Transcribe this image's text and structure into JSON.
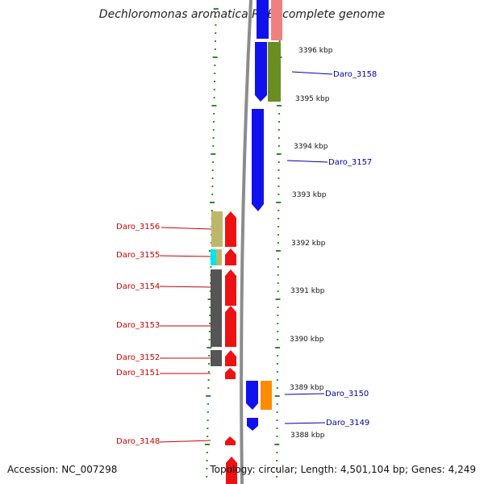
{
  "title": "Dechloromonas aromatica RCB, complete genome",
  "accession": "Accession: NC_007298",
  "topology": "Topology: circular; Length: 4,501,104 bp; Genes: 4,249",
  "colors": {
    "backbone": "#8c8c8c",
    "dots": "#2e8b2e",
    "left_label": "#cc0000",
    "right_label": "#0000aa"
  },
  "scale": {
    "unit": "kbp",
    "ticks": [
      "3396 kbp",
      "3395 kbp",
      "3394 kbp",
      "3393 kbp",
      "3392 kbp",
      "3391 kbp",
      "3390 kbp",
      "3389 kbp",
      "3388 kbp"
    ]
  },
  "genes_left": [
    {
      "label": "Daro_3156"
    },
    {
      "label": "Daro_3155"
    },
    {
      "label": "Daro_3154"
    },
    {
      "label": "Daro_3153"
    },
    {
      "label": "Daro_3152"
    },
    {
      "label": "Daro_3151"
    },
    {
      "label": "Daro_3148"
    }
  ],
  "genes_right": [
    {
      "label": "Daro_3158"
    },
    {
      "label": "Daro_3157"
    },
    {
      "label": "Daro_3150"
    },
    {
      "label": "Daro_3149"
    }
  ]
}
